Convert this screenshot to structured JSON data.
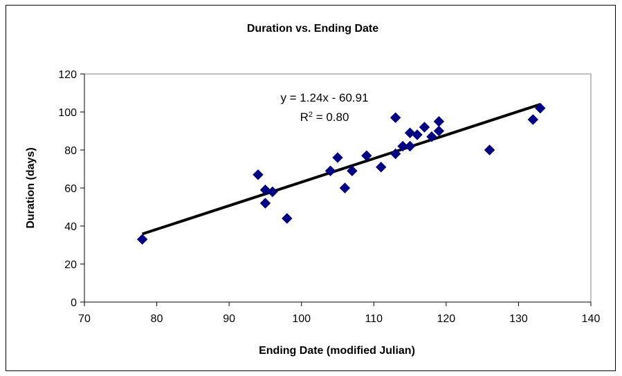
{
  "chart_data": {
    "type": "scatter",
    "title": "Duration vs. Ending Date",
    "xlabel": "Ending Date (modified Julian)",
    "ylabel": "Duration (days)",
    "xlim": [
      70,
      140
    ],
    "ylim": [
      0,
      120
    ],
    "xticks": [
      70,
      80,
      90,
      100,
      110,
      120,
      130,
      140
    ],
    "yticks": [
      0,
      20,
      40,
      60,
      80,
      100,
      120
    ],
    "x_tick_labels": [
      "70",
      "80",
      "90",
      "100",
      "110",
      "120",
      "130",
      "140"
    ],
    "y_tick_labels": [
      "0",
      "20",
      "40",
      "60",
      "80",
      "100",
      "120"
    ],
    "grid": false,
    "legend": "none",
    "marker_color": "#000080",
    "trendline": {
      "type": "linear",
      "slope": 1.24,
      "intercept": -60.91,
      "x_range": [
        78,
        133
      ],
      "color": "#000000",
      "equation_text": "y = 1.24x - 60.91",
      "r2_prefix": "R",
      "r2_superscript": "2",
      "r2_value_text": " = 0.80"
    },
    "points": [
      {
        "x": 78,
        "y": 33
      },
      {
        "x": 94,
        "y": 67
      },
      {
        "x": 95,
        "y": 59
      },
      {
        "x": 95,
        "y": 52
      },
      {
        "x": 96,
        "y": 58
      },
      {
        "x": 98,
        "y": 44
      },
      {
        "x": 104,
        "y": 69
      },
      {
        "x": 105,
        "y": 76
      },
      {
        "x": 106,
        "y": 60
      },
      {
        "x": 107,
        "y": 69
      },
      {
        "x": 109,
        "y": 77
      },
      {
        "x": 111,
        "y": 71
      },
      {
        "x": 113,
        "y": 97
      },
      {
        "x": 113,
        "y": 78
      },
      {
        "x": 114,
        "y": 82
      },
      {
        "x": 115,
        "y": 89
      },
      {
        "x": 115,
        "y": 82
      },
      {
        "x": 116,
        "y": 88
      },
      {
        "x": 117,
        "y": 92
      },
      {
        "x": 118,
        "y": 87
      },
      {
        "x": 119,
        "y": 95
      },
      {
        "x": 119,
        "y": 90
      },
      {
        "x": 126,
        "y": 80
      },
      {
        "x": 132,
        "y": 96
      },
      {
        "x": 133,
        "y": 102
      }
    ]
  }
}
